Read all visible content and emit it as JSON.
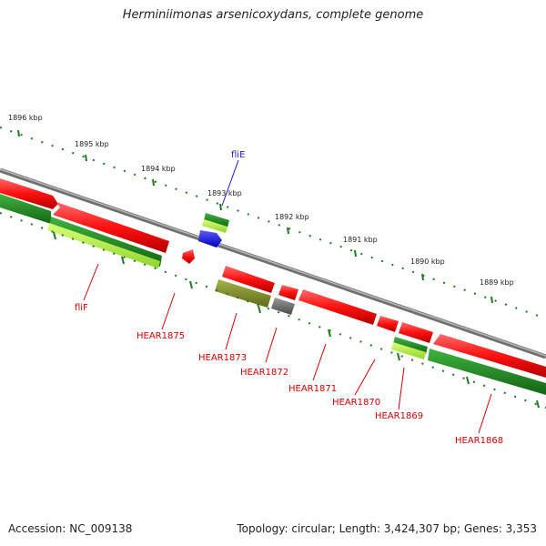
{
  "title": "Herminiimonas arsenicoxydans, complete genome",
  "footer": {
    "accession": "Accession: NC_009138",
    "summary": "Topology: circular; Length: 3,424,307 bp; Genes: 3,353"
  },
  "ruler_labels": [
    "1896 kbp",
    "1895 kbp",
    "1894 kbp",
    "1893 kbp",
    "1892 kbp",
    "1891 kbp",
    "1890 kbp",
    "1889 kbp"
  ],
  "gene_labels": [
    {
      "text": "fliE",
      "color": "#1a1ad0"
    },
    {
      "text": "fliF",
      "color": "#d40000"
    },
    {
      "text": "HEAR1875",
      "color": "#d40000"
    },
    {
      "text": "HEAR1873",
      "color": "#d40000"
    },
    {
      "text": "HEAR1872",
      "color": "#d40000"
    },
    {
      "text": "HEAR1871",
      "color": "#d40000"
    },
    {
      "text": "HEAR1870",
      "color": "#d40000"
    },
    {
      "text": "HEAR1869",
      "color": "#d40000"
    },
    {
      "text": "HEAR1868",
      "color": "#d40000"
    }
  ],
  "colors": {
    "cds": "#ff1a1a",
    "cds_dark": "#b30000",
    "green_dark": "#1f8a1f",
    "green_light": "#a8f03a",
    "olive": "#7e8f2a",
    "blue": "#1010e8",
    "grey": "#6e6e6e",
    "backbone": "#8c8c8c",
    "ruler": "#1f7a1f",
    "label_line_red": "#d40000",
    "label_line_blue": "#1a1ad0"
  }
}
